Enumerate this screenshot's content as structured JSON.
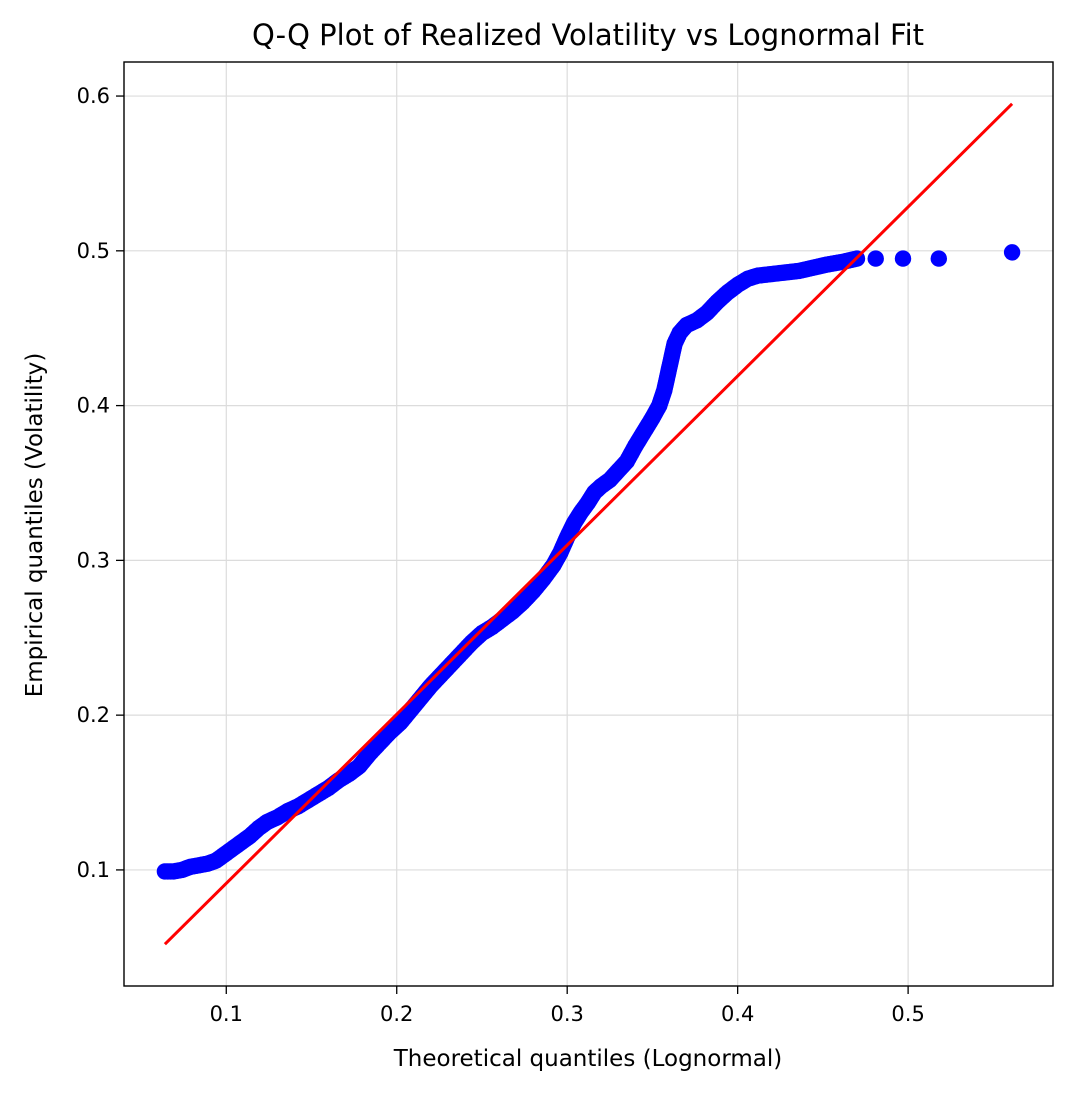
{
  "chart_data": {
    "type": "scatter",
    "title": "Q-Q Plot of Realized Volatility vs Lognormal Fit",
    "xlabel": "Theoretical quantiles (Lognormal)",
    "ylabel": "Empirical quantiles (Volatility)",
    "xlim": [
      0.04,
      0.585
    ],
    "ylim": [
      0.025,
      0.622
    ],
    "xticks": [
      0.1,
      0.2,
      0.3,
      0.4,
      0.5
    ],
    "xtick_labels": [
      "0.1",
      "0.2",
      "0.3",
      "0.4",
      "0.5"
    ],
    "yticks": [
      0.1,
      0.2,
      0.3,
      0.4,
      0.5,
      0.6
    ],
    "ytick_labels": [
      "0.1",
      "0.2",
      "0.3",
      "0.4",
      "0.5",
      "0.6"
    ],
    "grid": true,
    "series": [
      {
        "name": "Empirical quantiles",
        "kind": "scatter",
        "color": "#0000ff",
        "points": [
          [
            0.064,
            0.099
          ],
          [
            0.069,
            0.099
          ],
          [
            0.074,
            0.1
          ],
          [
            0.079,
            0.102
          ],
          [
            0.084,
            0.103
          ],
          [
            0.089,
            0.104
          ],
          [
            0.094,
            0.106
          ],
          [
            0.099,
            0.11
          ],
          [
            0.104,
            0.114
          ],
          [
            0.109,
            0.118
          ],
          [
            0.114,
            0.122
          ],
          [
            0.119,
            0.127
          ],
          [
            0.124,
            0.131
          ],
          [
            0.13,
            0.134
          ],
          [
            0.136,
            0.138
          ],
          [
            0.142,
            0.141
          ],
          [
            0.148,
            0.145
          ],
          [
            0.154,
            0.149
          ],
          [
            0.16,
            0.153
          ],
          [
            0.166,
            0.158
          ],
          [
            0.172,
            0.162
          ],
          [
            0.178,
            0.167
          ],
          [
            0.184,
            0.175
          ],
          [
            0.19,
            0.182
          ],
          [
            0.196,
            0.189
          ],
          [
            0.202,
            0.195
          ],
          [
            0.208,
            0.203
          ],
          [
            0.214,
            0.211
          ],
          [
            0.22,
            0.219
          ],
          [
            0.226,
            0.226
          ],
          [
            0.232,
            0.233
          ],
          [
            0.238,
            0.24
          ],
          [
            0.244,
            0.247
          ],
          [
            0.25,
            0.253
          ],
          [
            0.256,
            0.257
          ],
          [
            0.262,
            0.262
          ],
          [
            0.268,
            0.267
          ],
          [
            0.274,
            0.273
          ],
          [
            0.28,
            0.28
          ],
          [
            0.286,
            0.288
          ],
          [
            0.292,
            0.297
          ],
          [
            0.296,
            0.305
          ],
          [
            0.3,
            0.315
          ],
          [
            0.304,
            0.324
          ],
          [
            0.308,
            0.331
          ],
          [
            0.312,
            0.337
          ],
          [
            0.316,
            0.344
          ],
          [
            0.32,
            0.348
          ],
          [
            0.325,
            0.352
          ],
          [
            0.33,
            0.358
          ],
          [
            0.335,
            0.364
          ],
          [
            0.34,
            0.374
          ],
          [
            0.345,
            0.383
          ],
          [
            0.35,
            0.392
          ],
          [
            0.354,
            0.4
          ],
          [
            0.357,
            0.41
          ],
          [
            0.359,
            0.42
          ],
          [
            0.361,
            0.43
          ],
          [
            0.363,
            0.44
          ],
          [
            0.366,
            0.447
          ],
          [
            0.37,
            0.452
          ],
          [
            0.376,
            0.455
          ],
          [
            0.382,
            0.46
          ],
          [
            0.388,
            0.467
          ],
          [
            0.394,
            0.473
          ],
          [
            0.4,
            0.478
          ],
          [
            0.406,
            0.482
          ],
          [
            0.412,
            0.484
          ],
          [
            0.42,
            0.485
          ],
          [
            0.428,
            0.486
          ],
          [
            0.436,
            0.487
          ],
          [
            0.444,
            0.489
          ],
          [
            0.452,
            0.491
          ],
          [
            0.462,
            0.493
          ],
          [
            0.47,
            0.495
          ],
          [
            0.481,
            0.495
          ],
          [
            0.497,
            0.495
          ],
          [
            0.518,
            0.495
          ],
          [
            0.561,
            0.499
          ]
        ]
      },
      {
        "name": "Fit line",
        "kind": "line",
        "color": "#ff0000",
        "points": [
          [
            0.064,
            0.052
          ],
          [
            0.561,
            0.595
          ]
        ]
      }
    ]
  }
}
